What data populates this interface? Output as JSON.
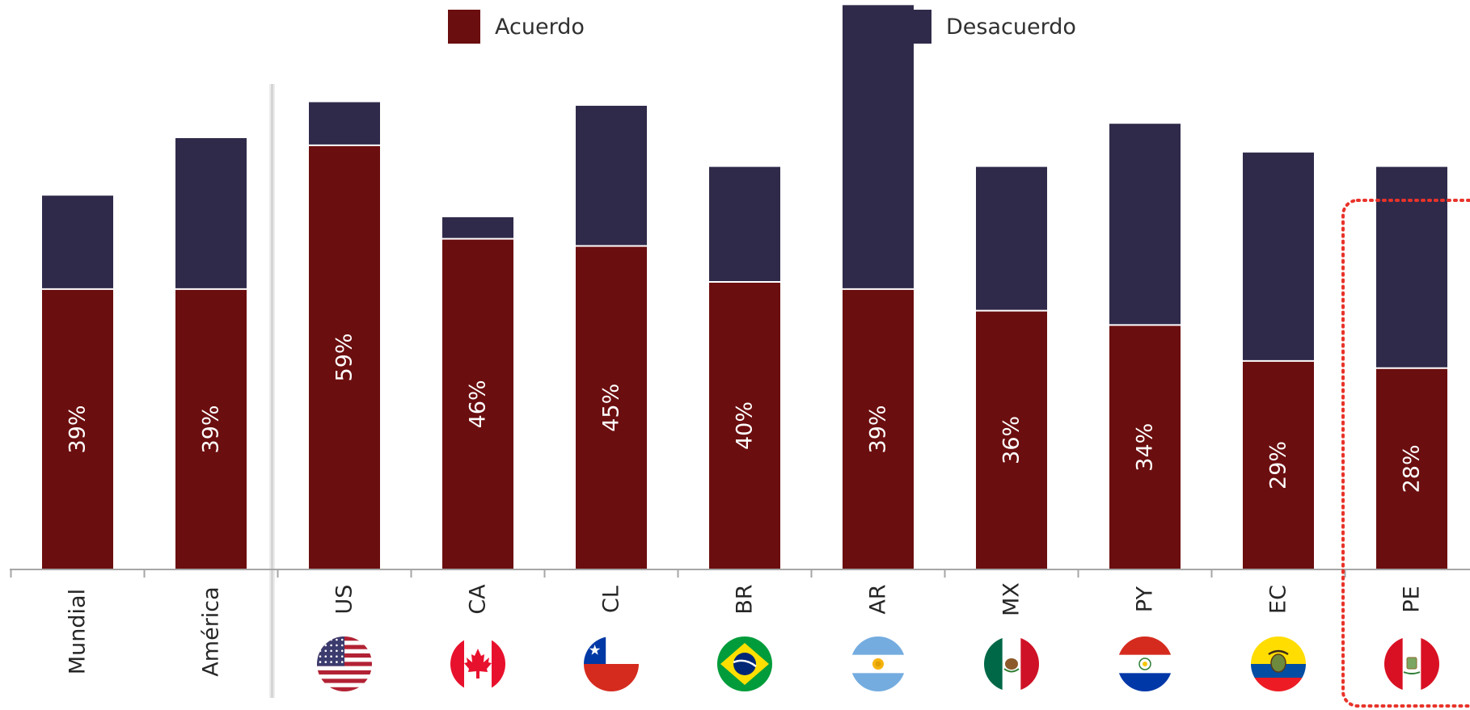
{
  "colors": {
    "acuerdo": "#6b0e0f",
    "desacuerdo": "#302a4a",
    "axis": "#a6a6a6",
    "highlight": "#e8332a",
    "label": "#ffffff",
    "category": "#262626"
  },
  "legend": {
    "acuerdo": "Acuerdo",
    "desacuerdo": "Desacuerdo"
  },
  "chart_data": {
    "type": "bar",
    "stacked": true,
    "categories": [
      "Mundial",
      "América",
      "US",
      "CA",
      "CL",
      "BR",
      "AR",
      "MX",
      "PY",
      "EC",
      "PE"
    ],
    "series": [
      {
        "name": "Acuerdo",
        "values": [
          39,
          39,
          59,
          46,
          45,
          40,
          39,
          36,
          34,
          29,
          28
        ],
        "labels": [
          "39%",
          "39%",
          "59%",
          "46%",
          "45%",
          "40%",
          "39%",
          "36%",
          "34%",
          "29%",
          "28%"
        ]
      },
      {
        "name": "Desacuerdo",
        "values": [
          13,
          21,
          6,
          3,
          19.5,
          16,
          39.5,
          20,
          28,
          29,
          28
        ]
      }
    ],
    "flags": [
      "",
      "",
      "us-flag-icon",
      "ca-flag-icon",
      "cl-flag-icon",
      "br-flag-icon",
      "ar-flag-icon",
      "mx-flag-icon",
      "py-flag-icon",
      "ec-flag-icon",
      "pe-flag-icon"
    ],
    "highlighted": "PE",
    "separator_after": "América",
    "ylim": [
      0,
      80
    ],
    "grid": false,
    "legend_position": "top"
  }
}
